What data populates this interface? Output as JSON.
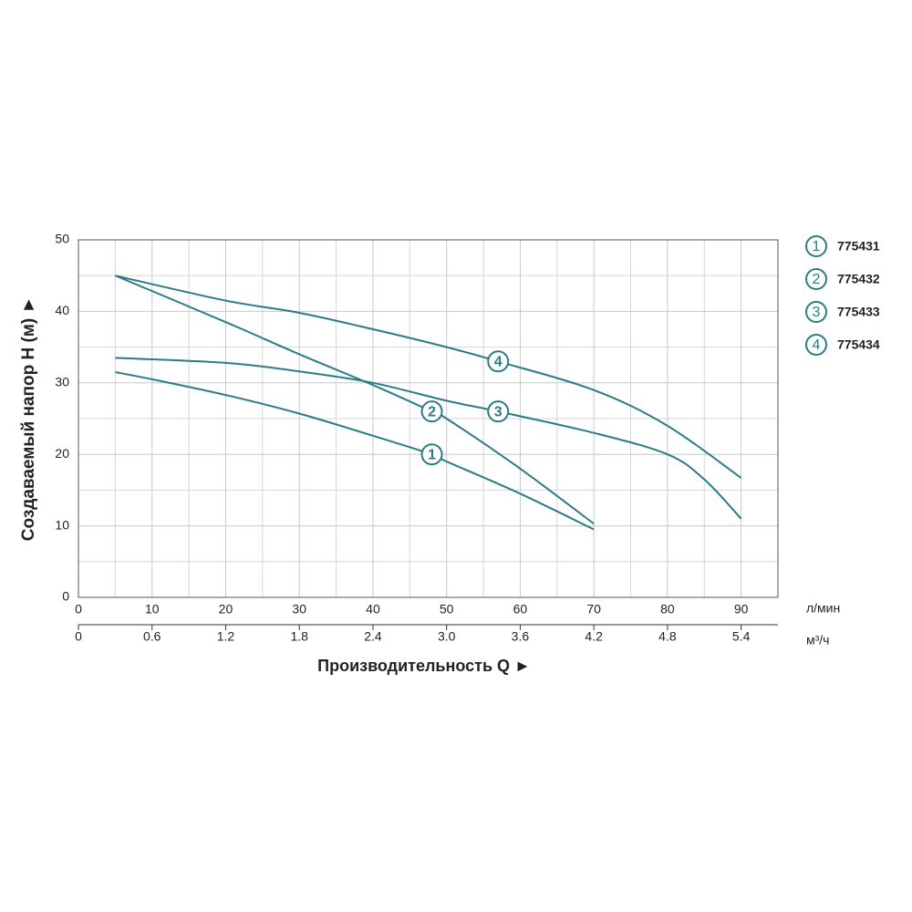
{
  "chart_data": {
    "type": "line",
    "xlabel": "Производительность Q ►",
    "ylabel": "Создаваемый напор H (м) ►",
    "x_unit": "л/мин",
    "x2_unit": "м³/ч",
    "xlim": [
      0,
      95
    ],
    "xticks": [
      0,
      10,
      20,
      30,
      40,
      50,
      60,
      70,
      80,
      90
    ],
    "x2lim": [
      0,
      5.7
    ],
    "x2ticks": [
      0,
      0.6,
      1.2,
      1.8,
      2.4,
      {
        "value": 3.0,
        "label": "3.0"
      },
      3.6,
      4.2,
      4.8,
      5.4
    ],
    "ylim": [
      0,
      50
    ],
    "yticks": [
      0,
      10,
      20,
      30,
      40,
      50
    ],
    "grid": true,
    "series": [
      {
        "name": "775431",
        "label": "1",
        "color": "#2b7c87",
        "x": [
          5,
          10,
          20,
          30,
          40,
          48,
          50,
          60,
          70
        ],
        "values": [
          31.5,
          30.5,
          28.3,
          25.7,
          22.6,
          20,
          19,
          14.5,
          9.5
        ]
      },
      {
        "name": "775432",
        "label": "2",
        "color": "#2b7c87",
        "x": [
          5,
          20,
          30,
          40,
          48,
          50,
          60,
          70
        ],
        "values": [
          45,
          38.5,
          34,
          29.7,
          26,
          25,
          18,
          10.3
        ]
      },
      {
        "name": "775433",
        "label": "3",
        "color": "#2b7c87",
        "x": [
          5,
          20,
          30,
          40,
          50,
          57,
          70,
          80,
          85,
          90
        ],
        "values": [
          33.5,
          32.8,
          31.6,
          30,
          27.5,
          26,
          23,
          20,
          16.5,
          11
        ]
      },
      {
        "name": "775434",
        "label": "4",
        "color": "#2b7c87",
        "x": [
          5,
          20,
          30,
          40,
          50,
          57,
          70,
          80,
          90
        ],
        "values": [
          45,
          41.5,
          39.8,
          37.5,
          35,
          33,
          29,
          24,
          16.7
        ]
      }
    ]
  }
}
